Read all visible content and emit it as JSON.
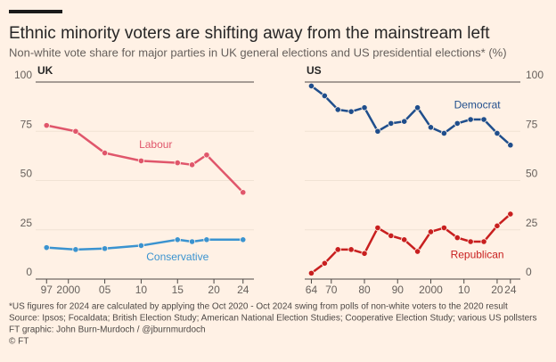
{
  "title": "Ethnic minority voters are shifting away from the mainstream left",
  "subtitle": "Non-white vote share for major parties in UK general elections and US presidential elections* (%)",
  "notes": [
    "*US figures for 2024 are calculated by applying the Oct 2020 - Oct 2024 swing from polls of non-white voters to the 2020 result",
    "Source: Ipsos; Focaldata; British Election Study; American National Election Studies; Cooperative Election Study; various US pollsters",
    "FT graphic: John Burn-Murdoch / @jburnmurdoch",
    "© FT"
  ],
  "chart_data": [
    {
      "type": "line",
      "title": "UK",
      "x": [
        1997,
        2001,
        2005,
        2010,
        2015,
        2017,
        2019,
        2024
      ],
      "series": [
        {
          "name": "Labour",
          "color": "#e0566b",
          "values": [
            78,
            75,
            64,
            60,
            59,
            58,
            63,
            44
          ]
        },
        {
          "name": "Conservative",
          "color": "#3a93d0",
          "values": [
            16,
            15,
            15.5,
            17,
            20,
            19,
            20,
            20
          ]
        }
      ],
      "xlim": [
        1995.5,
        2025.5
      ],
      "xticks": [
        {
          "value": 1997,
          "label": "97"
        },
        2000,
        {
          "value": 2005,
          "label": "05"
        },
        {
          "value": 2010,
          "label": "10"
        },
        {
          "value": 2015,
          "label": "15"
        },
        {
          "value": 2020,
          "label": "20"
        },
        {
          "value": 2024,
          "label": "24"
        }
      ],
      "ylim": [
        0,
        100
      ],
      "yticks": [
        0,
        25,
        50,
        75,
        100
      ],
      "grid": true
    },
    {
      "type": "line",
      "title": "US",
      "x": [
        1964,
        1968,
        1972,
        1976,
        1980,
        1984,
        1988,
        1992,
        1996,
        2000,
        2004,
        2008,
        2012,
        2016,
        2020,
        2024
      ],
      "series": [
        {
          "name": "Democrat",
          "color": "#1f4e8c",
          "values": [
            98,
            93,
            86,
            85,
            87,
            75,
            79,
            80,
            87,
            77,
            74,
            79,
            81,
            81,
            74,
            68
          ]
        },
        {
          "name": "Republican",
          "color": "#c81f1f",
          "values": [
            3,
            8,
            15,
            15,
            13,
            26,
            22,
            20,
            14,
            24,
            26,
            21,
            19,
            19,
            27,
            33
          ]
        }
      ],
      "xlim": [
        1962,
        2027
      ],
      "xticks": [
        {
          "value": 1964,
          "label": "64"
        },
        {
          "value": 1970,
          "label": "70"
        },
        {
          "value": 1980,
          "label": "80"
        },
        {
          "value": 1990,
          "label": "90"
        },
        2000,
        {
          "value": 2010,
          "label": "10"
        },
        {
          "value": 2020,
          "label": "20"
        },
        {
          "value": 2024,
          "label": "24"
        }
      ],
      "ylim": [
        0,
        100
      ],
      "yticks": [
        0,
        25,
        50,
        75,
        100
      ],
      "grid": true
    }
  ]
}
